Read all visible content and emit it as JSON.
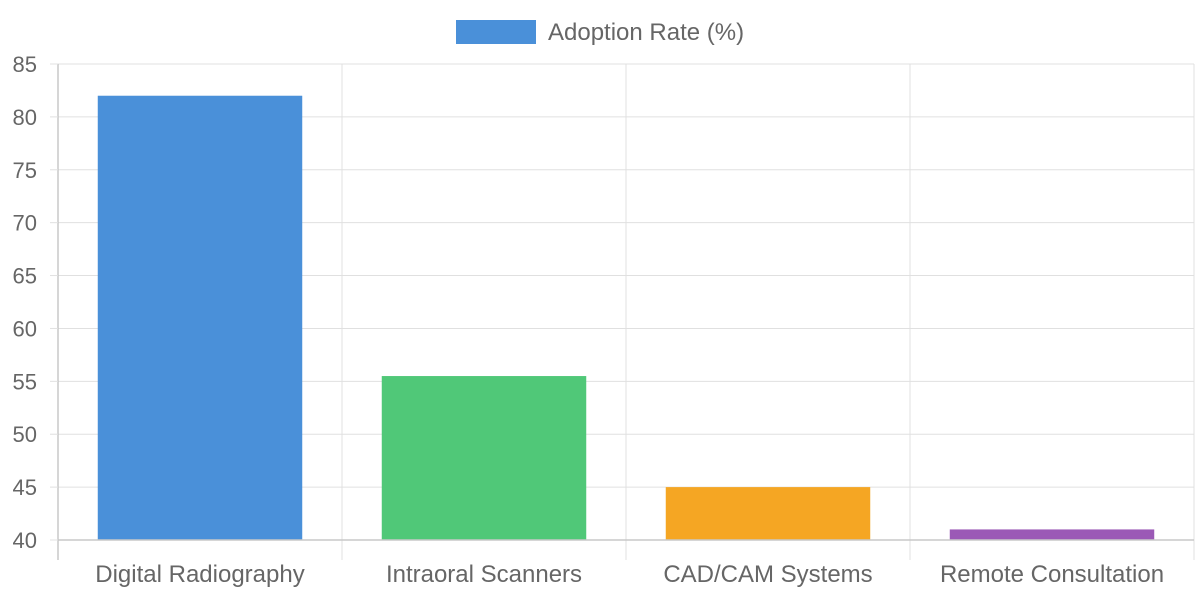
{
  "chart_data": {
    "type": "bar",
    "title": "",
    "xlabel": "",
    "ylabel": "",
    "categories": [
      "Digital Radiography",
      "Intraoral Scanners",
      "CAD/CAM Systems",
      "Remote Consultation"
    ],
    "series": [
      {
        "name": "Adoption Rate (%)",
        "values": [
          82,
          55.5,
          45,
          41
        ],
        "colors": [
          "#4a90d9",
          "#50c878",
          "#f5a623",
          "#9b59b6"
        ]
      }
    ],
    "ylim": [
      40,
      85
    ],
    "yticks": [
      40,
      45,
      50,
      55,
      60,
      65,
      70,
      75,
      80,
      85
    ],
    "grid": true,
    "legend_position": "top-center",
    "legend_color": "#4a90d9"
  }
}
